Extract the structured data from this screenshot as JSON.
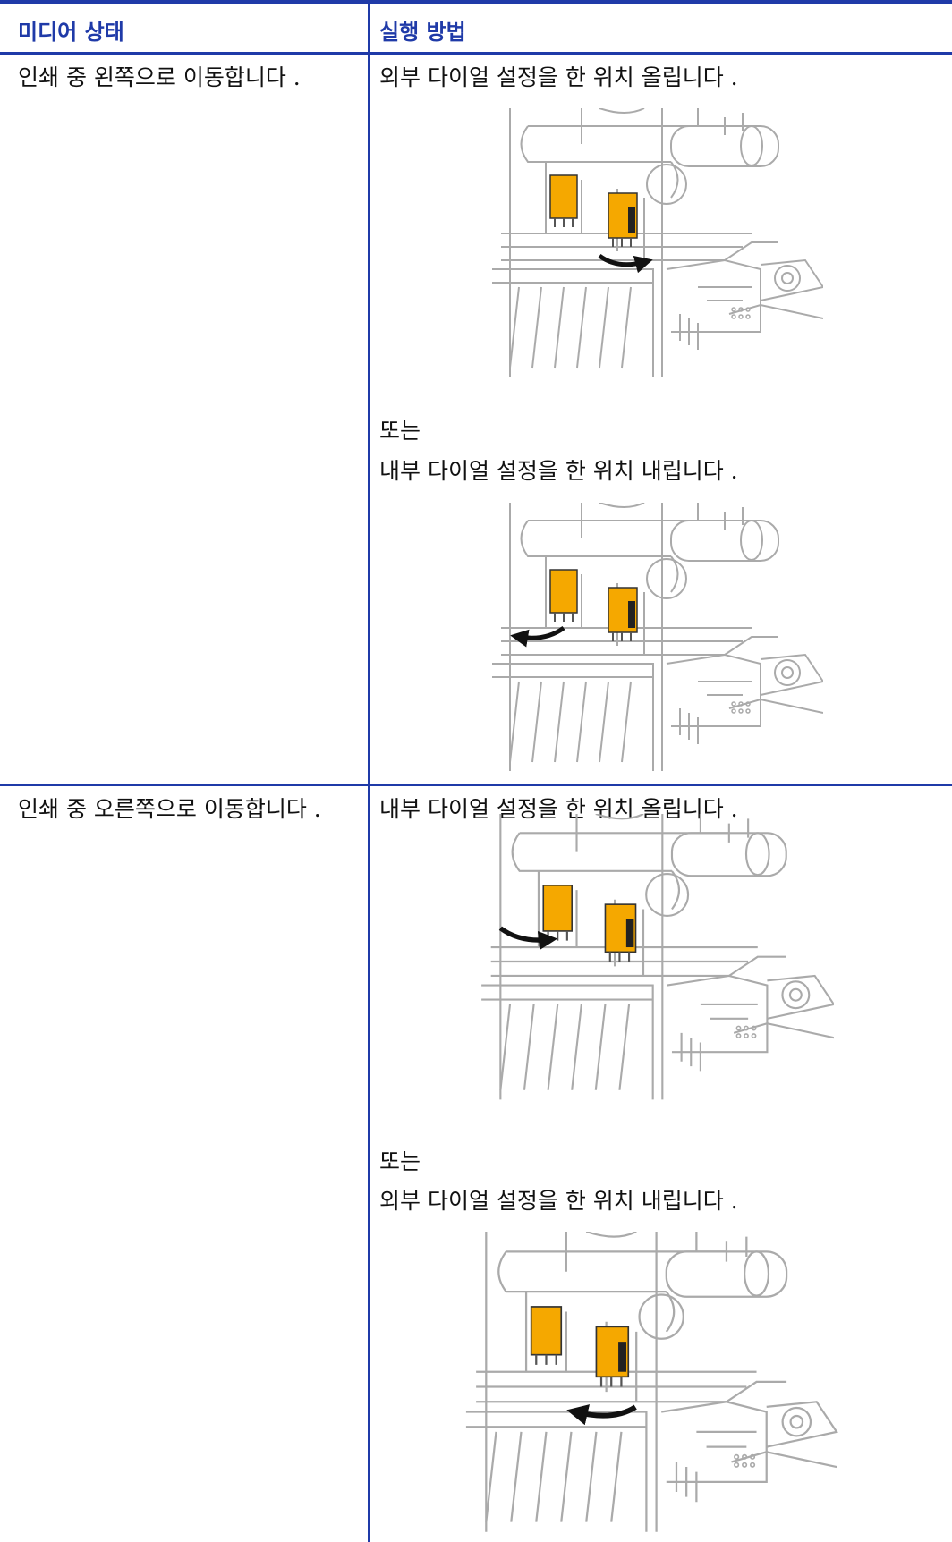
{
  "table": {
    "headers": [
      "미디어 상태",
      "실행 방법"
    ],
    "rows": [
      {
        "condition": "인쇄 중 왼쪽으로 이동합니다 .",
        "action_1": "외부 다이얼 설정을 한 위치 올립니다 .",
        "or": "또는",
        "action_2": "내부 다이얼 설정을 한 위치 내립니다 ."
      },
      {
        "condition": "인쇄 중 오른쪽으로 이동합니다 .",
        "action_1": "내부 다이얼 설정을 한 위치 올립니다 .",
        "or": "또는",
        "action_2": "외부 다이얼 설정을 한 위치 내립니다 ."
      }
    ]
  }
}
